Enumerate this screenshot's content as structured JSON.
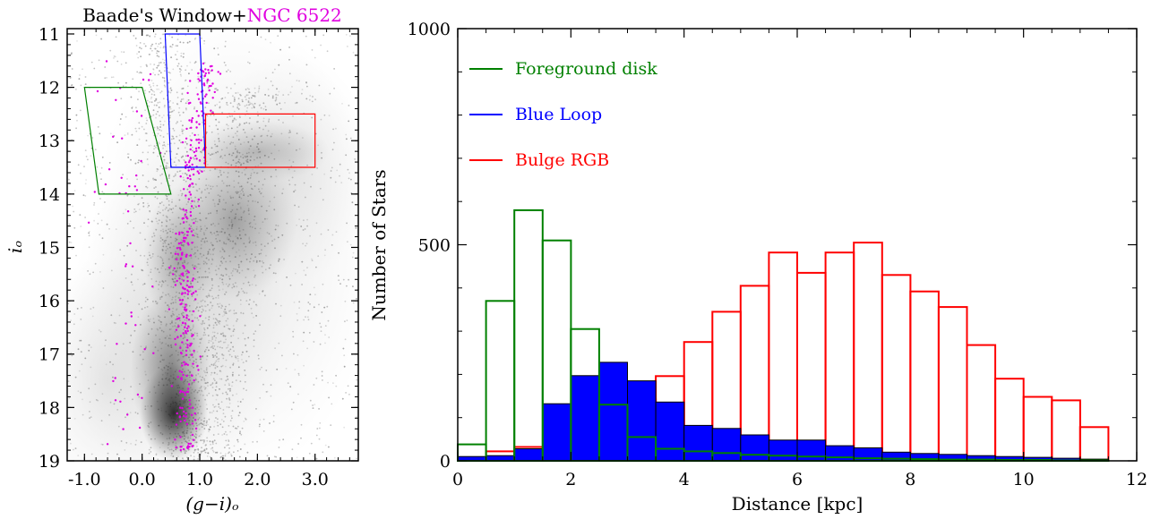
{
  "left_panel": {
    "title_part1": "Baade's Window+",
    "title_part2": "NGC 6522",
    "title_part2_color": "#e000e0",
    "xlabel": "(g−i)ₒ",
    "ylabel": "iₒ",
    "x_ticks": [
      "-1.0",
      "0.0",
      "1.0",
      "2.0",
      "3.0"
    ],
    "y_ticks": [
      "11",
      "12",
      "13",
      "14",
      "15",
      "16",
      "17",
      "18",
      "19"
    ],
    "xlim": [
      -1.3,
      3.75
    ],
    "ylim": [
      19,
      10.9
    ],
    "selection_boxes": [
      {
        "name": "Foreground disk",
        "color": "#008000",
        "points": [
          [
            -1.0,
            12.0
          ],
          [
            0.0,
            12.0
          ],
          [
            0.5,
            14.0
          ],
          [
            -0.75,
            14.0
          ]
        ]
      },
      {
        "name": "Blue Loop",
        "color": "#0000ff",
        "points": [
          [
            0.4,
            11.0
          ],
          [
            1.0,
            11.0
          ],
          [
            1.1,
            13.5
          ],
          [
            0.5,
            13.5
          ]
        ]
      },
      {
        "name": "Bulge RGB",
        "color": "#ff0000",
        "points": [
          [
            1.1,
            12.5
          ],
          [
            3.0,
            12.5
          ],
          [
            3.0,
            13.5
          ],
          [
            1.1,
            13.5
          ]
        ]
      }
    ]
  },
  "chart_data": {
    "type": "bar",
    "xlabel": "Distance [kpc]",
    "ylabel": "Number of Stars",
    "xlim": [
      0,
      12
    ],
    "ylim": [
      0,
      1000
    ],
    "x_ticks": [
      "0",
      "2",
      "4",
      "6",
      "8",
      "10",
      "12"
    ],
    "y_ticks": [
      "0",
      "500",
      "1000"
    ],
    "legend_position": "top-left",
    "bin_edges": [
      0,
      0.5,
      1,
      1.5,
      2,
      2.5,
      3,
      3.5,
      4,
      4.5,
      5,
      5.5,
      6,
      6.5,
      7,
      7.5,
      8,
      8.5,
      9,
      9.5,
      10,
      10.5,
      11,
      11.5,
      12
    ],
    "series": [
      {
        "name": "Foreground disk",
        "color": "#008000",
        "style": "step",
        "values": [
          38,
          370,
          580,
          510,
          305,
          130,
          55,
          28,
          22,
          18,
          14,
          12,
          10,
          8,
          6,
          5,
          4,
          3,
          3,
          2,
          2,
          1,
          1,
          0
        ]
      },
      {
        "name": "Blue Loop",
        "color": "#0000ff",
        "style": "filled",
        "values": [
          10,
          12,
          28,
          132,
          197,
          228,
          185,
          136,
          82,
          75,
          60,
          48,
          48,
          35,
          30,
          20,
          17,
          15,
          12,
          10,
          8,
          6,
          4,
          0
        ]
      },
      {
        "name": "Bulge RGB",
        "color": "#ff0000",
        "style": "step",
        "values": [
          8,
          22,
          32,
          30,
          48,
          112,
          142,
          196,
          275,
          345,
          405,
          482,
          435,
          482,
          505,
          430,
          392,
          356,
          268,
          190,
          148,
          140,
          78,
          0
        ]
      }
    ]
  }
}
